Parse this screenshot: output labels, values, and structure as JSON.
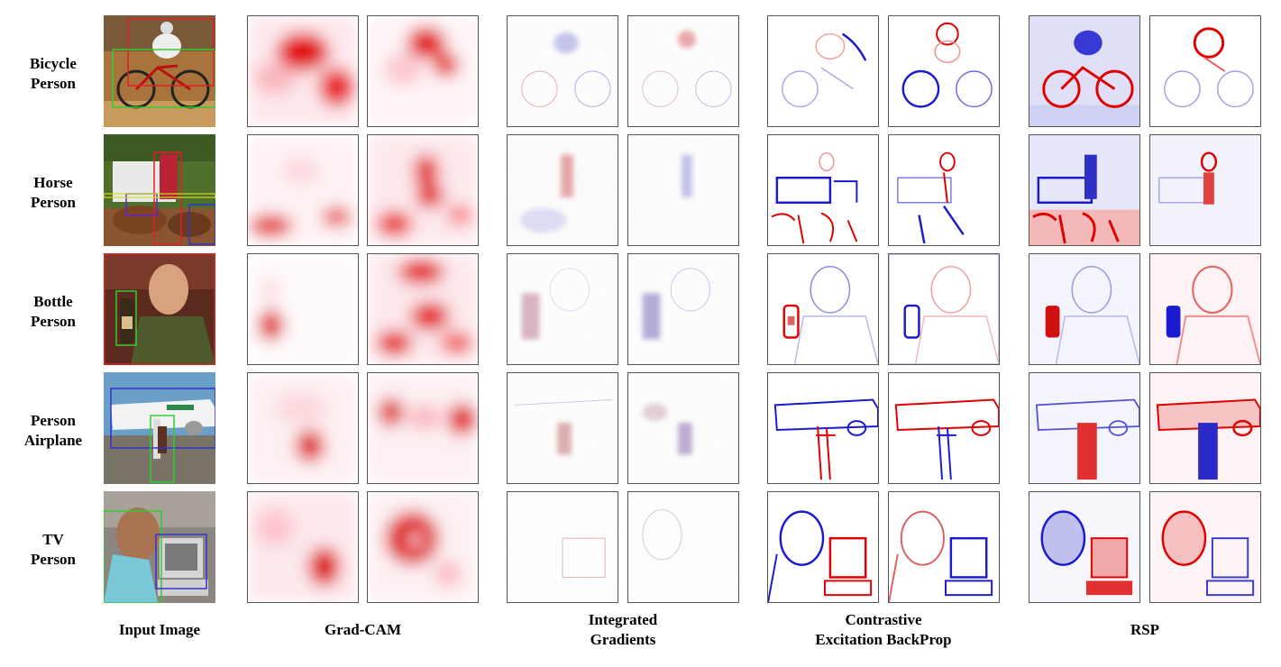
{
  "rows": [
    {
      "line1": "Bicycle",
      "line2": "Person"
    },
    {
      "line1": "Horse",
      "line2": "Person"
    },
    {
      "line1": "Bottle",
      "line2": "Person"
    },
    {
      "line1": "Person",
      "line2": "Airplane"
    },
    {
      "line1": "TV",
      "line2": "Person"
    }
  ],
  "columns": {
    "input": "Input Image",
    "gradcam": "Grad-CAM",
    "ig_line1": "Integrated",
    "ig_line2": "Gradients",
    "ceb_line1": "Contrastive",
    "ceb_line2": "Excitation BackProp",
    "rsp": "RSP"
  },
  "colors": {
    "positive": "#e00000",
    "negative": "#1a1ad0",
    "border": "#555555"
  }
}
